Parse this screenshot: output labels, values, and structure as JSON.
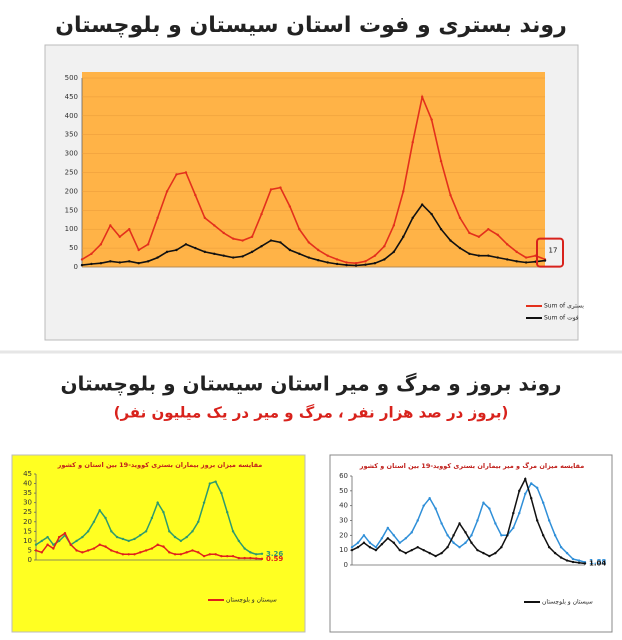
{
  "section_title": "روند بروز و مرگ و میر استان سیستان و بلوچستان",
  "section_subtitle": "(بروز در صد هزار نفر ، مرگ و میر در یک میلیون نفر)",
  "chart_data": [
    {
      "type": "line",
      "title": "روند بستری و فوت استان سیستان و بلوچستان",
      "ylim": [
        0,
        500
      ],
      "yticks": [
        0,
        50,
        100,
        150,
        200,
        250,
        300,
        350,
        400,
        450,
        500
      ],
      "grid": true,
      "annotation": "17",
      "series": [
        {
          "name": "Sum of بستری",
          "color": "#e3301c",
          "values": [
            20,
            35,
            60,
            110,
            80,
            100,
            45,
            60,
            130,
            200,
            245,
            250,
            190,
            130,
            110,
            90,
            75,
            70,
            80,
            140,
            205,
            210,
            160,
            100,
            65,
            45,
            30,
            20,
            12,
            10,
            15,
            30,
            55,
            110,
            200,
            330,
            450,
            390,
            280,
            190,
            130,
            90,
            80,
            100,
            85,
            60,
            40,
            25,
            30,
            20
          ]
        },
        {
          "name": "Sum of فوت",
          "color": "#111111",
          "values": [
            5,
            8,
            10,
            15,
            12,
            15,
            10,
            15,
            25,
            40,
            45,
            60,
            50,
            40,
            35,
            30,
            25,
            28,
            40,
            55,
            70,
            65,
            45,
            35,
            25,
            18,
            12,
            8,
            5,
            4,
            6,
            10,
            20,
            40,
            80,
            130,
            165,
            140,
            100,
            70,
            50,
            35,
            30,
            30,
            25,
            20,
            15,
            12,
            14,
            17
          ]
        }
      ]
    },
    {
      "type": "line",
      "title": "مقایسه میزان بروز بیماران بستری کووید-19 بین استان و کشور",
      "ylim": [
        0,
        45
      ],
      "yticks": [
        0,
        5,
        10,
        15,
        20,
        25,
        30,
        35,
        40,
        45
      ],
      "grid": false,
      "series": [
        {
          "color": "#2e9a6e",
          "values": [
            8,
            10,
            12,
            8,
            10,
            13,
            8,
            10,
            12,
            15,
            20,
            26,
            22,
            15,
            12,
            11,
            10,
            11,
            13,
            15,
            22,
            30,
            25,
            15,
            12,
            10,
            12,
            15,
            20,
            30,
            40,
            41,
            35,
            25,
            15,
            10,
            6,
            4,
            3,
            3.26
          ]
        },
        {
          "name": "سیستان و بلوچستان",
          "color": "#e0201c",
          "values": [
            5,
            4,
            8,
            6,
            12,
            14,
            8,
            5,
            4,
            5,
            6,
            8,
            7,
            5,
            4,
            3,
            3,
            3,
            4,
            5,
            6,
            8,
            7,
            4,
            3,
            3,
            4,
            5,
            4,
            2,
            3,
            3,
            2,
            2,
            2,
            1,
            1,
            1,
            0.8,
            0.59
          ]
        }
      ]
    },
    {
      "type": "line",
      "title": "مقایسه میزان مرگ و میر بیماران بستری کووید-19 بین استان و کشور",
      "ylim": [
        0,
        60
      ],
      "yticks": [
        0,
        10,
        20,
        30,
        40,
        50,
        60
      ],
      "grid": false,
      "series": [
        {
          "color": "#2f8fd8",
          "values": [
            12,
            15,
            20,
            15,
            12,
            18,
            25,
            20,
            15,
            18,
            22,
            30,
            40,
            45,
            38,
            28,
            20,
            15,
            12,
            15,
            20,
            30,
            42,
            38,
            28,
            20,
            20,
            25,
            35,
            48,
            55,
            52,
            42,
            30,
            20,
            12,
            8,
            4,
            3,
            1.88
          ]
        },
        {
          "name": "سیستان و بلوچستان",
          "color": "#111111",
          "values": [
            10,
            12,
            15,
            12,
            10,
            14,
            18,
            15,
            10,
            8,
            10,
            12,
            10,
            8,
            6,
            8,
            12,
            20,
            28,
            22,
            15,
            10,
            8,
            6,
            8,
            12,
            20,
            35,
            50,
            58,
            45,
            30,
            20,
            12,
            8,
            5,
            3,
            2,
            1.5,
            1.04
          ]
        }
      ]
    }
  ]
}
